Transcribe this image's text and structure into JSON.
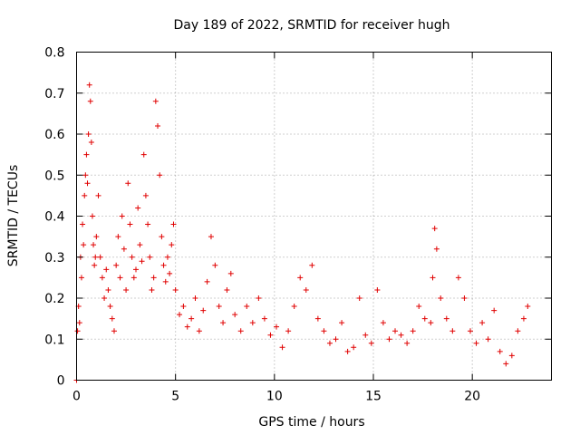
{
  "chart_data": {
    "type": "scatter",
    "title": "Day 189 of 2022, SRMTID for receiver hugh",
    "xlabel": "GPS time / hours",
    "ylabel": "SRMTID / TECUs",
    "xlim": [
      0,
      24
    ],
    "ylim": [
      0,
      0.8
    ],
    "xticks": [
      0,
      5,
      10,
      15,
      20
    ],
    "yticks": [
      0,
      0.1,
      0.2,
      0.3,
      0.4,
      0.5,
      0.6,
      0.7,
      0.8
    ],
    "xtick_labels": [
      "0",
      "5",
      "10",
      "15",
      "20"
    ],
    "ytick_labels": [
      "0",
      "0.1",
      "0.2",
      "0.3",
      "0.4",
      "0.5",
      "0.6",
      "0.7",
      "0.8"
    ],
    "grid": true,
    "marker": "+",
    "color": "#e00000",
    "series": [
      {
        "name": "SRMTID",
        "x": [
          0.0,
          0.05,
          0.1,
          0.15,
          0.2,
          0.25,
          0.3,
          0.35,
          0.4,
          0.45,
          0.5,
          0.55,
          0.6,
          0.65,
          0.7,
          0.75,
          0.8,
          0.85,
          0.9,
          0.95,
          1.0,
          1.1,
          1.2,
          1.3,
          1.4,
          1.5,
          1.6,
          1.7,
          1.8,
          1.9,
          2.0,
          2.1,
          2.2,
          2.3,
          2.4,
          2.5,
          2.6,
          2.7,
          2.8,
          2.9,
          3.0,
          3.1,
          3.2,
          3.3,
          3.4,
          3.5,
          3.6,
          3.7,
          3.8,
          3.9,
          4.0,
          4.1,
          4.2,
          4.3,
          4.4,
          4.5,
          4.6,
          4.7,
          4.8,
          4.9,
          5.0,
          5.2,
          5.4,
          5.6,
          5.8,
          6.0,
          6.2,
          6.4,
          6.6,
          6.8,
          7.0,
          7.2,
          7.4,
          7.6,
          7.8,
          8.0,
          8.3,
          8.6,
          8.9,
          9.2,
          9.5,
          9.8,
          10.1,
          10.4,
          10.7,
          11.0,
          11.3,
          11.6,
          11.9,
          12.2,
          12.5,
          12.8,
          13.1,
          13.4,
          13.7,
          14.0,
          14.3,
          14.6,
          14.9,
          15.2,
          15.5,
          15.8,
          16.1,
          16.4,
          16.7,
          17.0,
          17.3,
          17.6,
          17.9,
          18.0,
          18.1,
          18.2,
          18.4,
          18.7,
          19.0,
          19.3,
          19.6,
          19.9,
          20.2,
          20.5,
          20.8,
          21.1,
          21.4,
          21.7,
          22.0,
          22.3,
          22.6,
          22.8
        ],
        "y": [
          0.0,
          0.12,
          0.18,
          0.14,
          0.3,
          0.25,
          0.38,
          0.33,
          0.45,
          0.5,
          0.55,
          0.48,
          0.6,
          0.72,
          0.68,
          0.58,
          0.4,
          0.33,
          0.28,
          0.3,
          0.35,
          0.45,
          0.3,
          0.25,
          0.2,
          0.27,
          0.22,
          0.18,
          0.15,
          0.12,
          0.28,
          0.35,
          0.25,
          0.4,
          0.32,
          0.22,
          0.48,
          0.38,
          0.3,
          0.25,
          0.27,
          0.42,
          0.33,
          0.29,
          0.55,
          0.45,
          0.38,
          0.3,
          0.22,
          0.25,
          0.68,
          0.62,
          0.5,
          0.35,
          0.28,
          0.24,
          0.3,
          0.26,
          0.33,
          0.38,
          0.22,
          0.16,
          0.18,
          0.13,
          0.15,
          0.2,
          0.12,
          0.17,
          0.24,
          0.35,
          0.28,
          0.18,
          0.14,
          0.22,
          0.26,
          0.16,
          0.12,
          0.18,
          0.14,
          0.2,
          0.15,
          0.11,
          0.13,
          0.08,
          0.12,
          0.18,
          0.25,
          0.22,
          0.28,
          0.15,
          0.12,
          0.09,
          0.1,
          0.14,
          0.07,
          0.08,
          0.2,
          0.11,
          0.09,
          0.22,
          0.14,
          0.1,
          0.12,
          0.11,
          0.09,
          0.12,
          0.18,
          0.15,
          0.14,
          0.25,
          0.37,
          0.32,
          0.2,
          0.15,
          0.12,
          0.25,
          0.2,
          0.12,
          0.09,
          0.14,
          0.1,
          0.17,
          0.07,
          0.04,
          0.06,
          0.12,
          0.15,
          0.18
        ]
      }
    ]
  }
}
